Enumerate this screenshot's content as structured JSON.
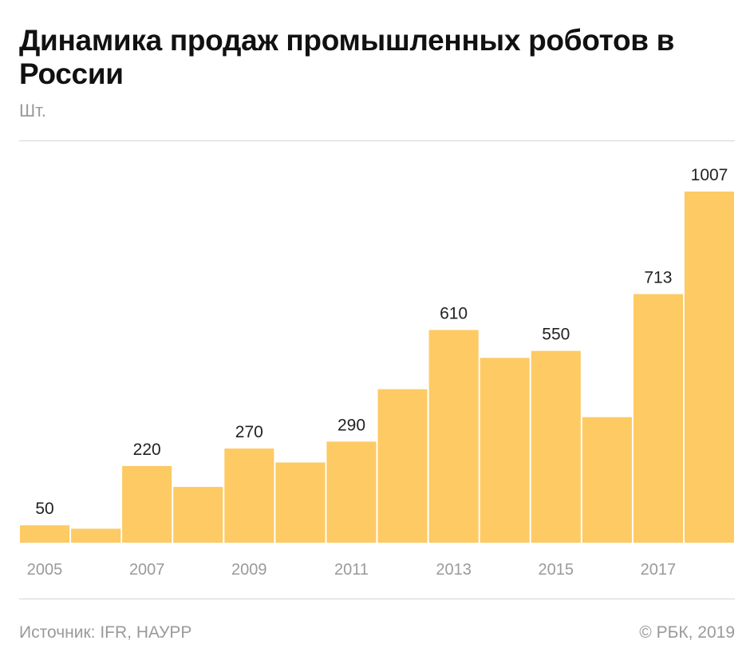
{
  "title": "Динамика продаж промышленных роботов в России",
  "unit": "Шт.",
  "source": "Источник: IFR, НАУРР",
  "copyright": "© РБК, 2019",
  "colors": {
    "bar": "#fdca64",
    "value_label": "#222222",
    "tick_label": "#9a9a9a"
  },
  "chart_data": {
    "type": "bar",
    "title": "Динамика продаж промышленных роботов в России",
    "ylabel": "Шт.",
    "xlabel": "",
    "categories": [
      "2005",
      "2006",
      "2007",
      "2008",
      "2009",
      "2010",
      "2011",
      "2012",
      "2013",
      "2014",
      "2015",
      "2016",
      "2017",
      "2018"
    ],
    "values": [
      50,
      40,
      220,
      160,
      270,
      230,
      290,
      440,
      610,
      530,
      550,
      360,
      713,
      1007
    ],
    "value_labels": [
      "50",
      "",
      "220",
      "",
      "270",
      "",
      "290",
      "",
      "610",
      "",
      "550",
      "",
      "713",
      "1007"
    ],
    "tick_labels": [
      "2005",
      "",
      "2007",
      "",
      "2009",
      "",
      "2011",
      "",
      "2013",
      "",
      "2015",
      "",
      "2017",
      ""
    ],
    "ylim": [
      0,
      1007
    ],
    "grid": false
  }
}
